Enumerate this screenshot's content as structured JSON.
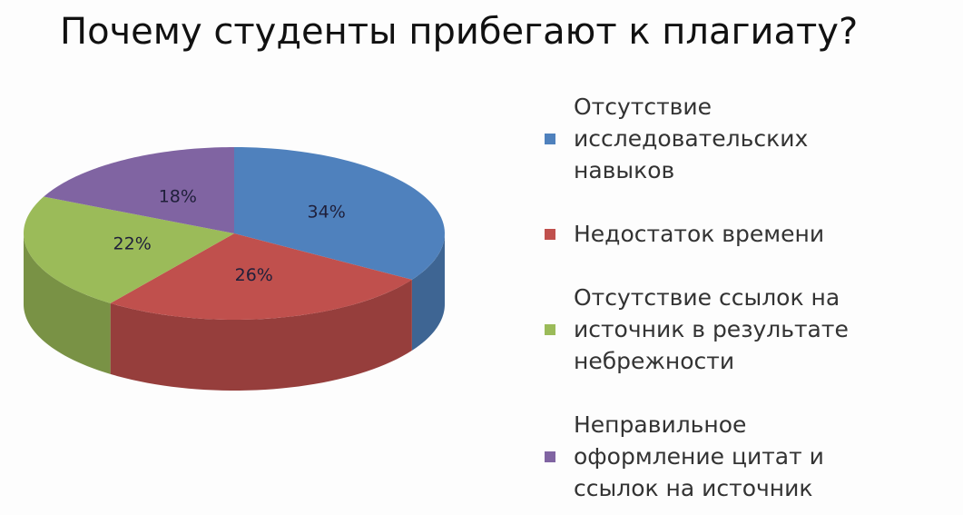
{
  "chart_data": {
    "type": "pie3d",
    "title": "Почему студенты прибегают к плагиату?",
    "categories": [
      "Отсутствие исследовательских навыков",
      "Недостаток времени",
      "Отсутствие ссылок на источник в результате небрежности",
      "Неправильное оформление цитат и ссылок на источник"
    ],
    "values": [
      34,
      26,
      22,
      18
    ],
    "value_labels": [
      "34%",
      "26%",
      "22%",
      "18%"
    ],
    "colors": [
      "#4f81bd",
      "#c0504d",
      "#9bbb59",
      "#8064a2"
    ],
    "legend": "right"
  }
}
